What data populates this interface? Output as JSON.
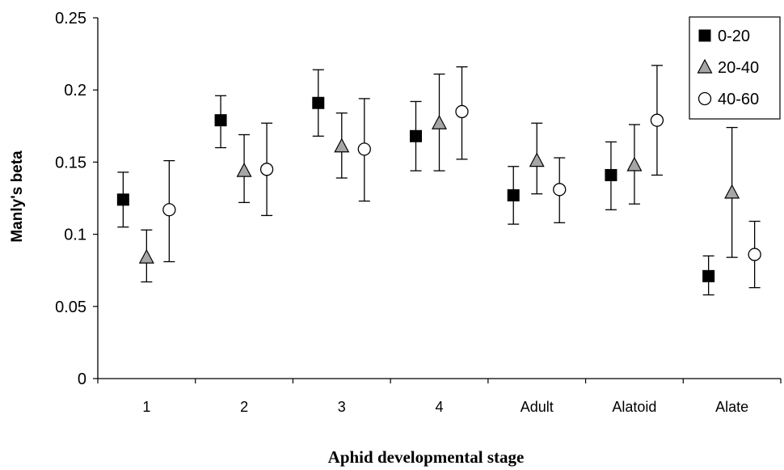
{
  "chart_data": {
    "type": "scatter",
    "title": "",
    "xlabel": "Aphid developmental stage",
    "ylabel": "Manly's beta",
    "ylim": [
      0,
      0.25
    ],
    "yticks": [
      "0",
      "0.05",
      "0.1",
      "0.15",
      "0.2",
      "0.25"
    ],
    "yticks_values": [
      0,
      0.05,
      0.1,
      0.15,
      0.2,
      0.25
    ],
    "categories": [
      "1",
      "2",
      "3",
      "4",
      "Adult",
      "Alatoid",
      "Alate"
    ],
    "grid": false,
    "legend_position": "top-right",
    "series": [
      {
        "name": "0-20",
        "marker": "square",
        "color": "#000000",
        "values": [
          0.124,
          0.179,
          0.191,
          0.168,
          0.127,
          0.141,
          0.071
        ],
        "err_low": [
          0.105,
          0.16,
          0.168,
          0.144,
          0.107,
          0.117,
          0.058
        ],
        "err_high": [
          0.143,
          0.196,
          0.214,
          0.192,
          0.147,
          0.164,
          0.085
        ]
      },
      {
        "name": "20-40",
        "marker": "triangle",
        "color": "#a6a6a6",
        "values": [
          0.084,
          0.144,
          0.161,
          0.177,
          0.151,
          0.148,
          0.129
        ],
        "err_low": [
          0.067,
          0.122,
          0.139,
          0.144,
          0.128,
          0.121,
          0.084
        ],
        "err_high": [
          0.103,
          0.169,
          0.184,
          0.211,
          0.177,
          0.176,
          0.174
        ]
      },
      {
        "name": "40-60",
        "marker": "circle",
        "color": "#ffffff",
        "values": [
          0.117,
          0.145,
          0.159,
          0.185,
          0.131,
          0.179,
          0.086
        ],
        "err_low": [
          0.081,
          0.113,
          0.123,
          0.152,
          0.108,
          0.141,
          0.063
        ],
        "err_high": [
          0.151,
          0.177,
          0.194,
          0.216,
          0.153,
          0.217,
          0.109
        ]
      }
    ]
  }
}
